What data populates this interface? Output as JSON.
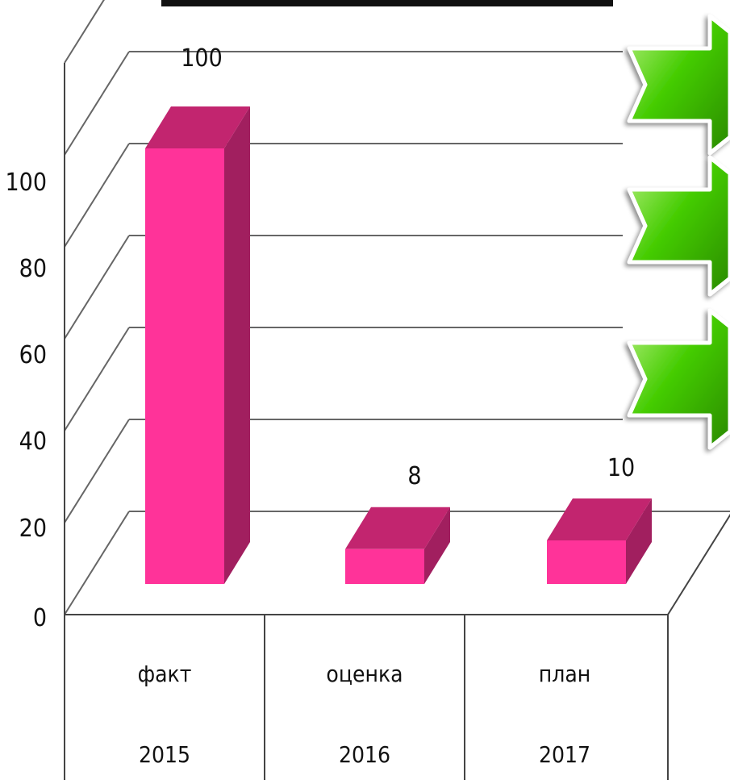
{
  "chart_data": {
    "type": "bar",
    "categories": [
      "факт",
      "оценка",
      "план"
    ],
    "years": [
      "2015",
      "2016",
      "2017"
    ],
    "values": [
      100,
      8,
      10
    ],
    "data_labels": [
      "100",
      "8",
      "10"
    ],
    "ylim": [
      0,
      100
    ],
    "yticks": [
      "0",
      "20",
      "40",
      "60",
      "80",
      "100"
    ],
    "grid": true,
    "title": "",
    "xlabel": "",
    "ylabel": "",
    "three_d": true
  },
  "colors": {
    "bar_front": "#ff3399",
    "bar_top": "#c2256f",
    "bar_side": "#a11f5f",
    "arrow_green": "#44cc00"
  },
  "decorations": {
    "arrows": [
      "arrow-icon",
      "arrow-icon",
      "arrow-icon"
    ]
  }
}
